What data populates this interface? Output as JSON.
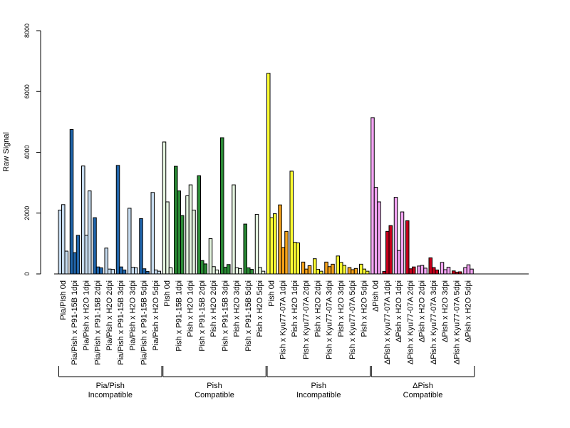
{
  "chart_data": {
    "type": "bar",
    "ylabel": "Raw Signal",
    "ylim": [
      0,
      8000
    ],
    "yticks": [
      0,
      2000,
      4000,
      6000,
      8000
    ],
    "grid": false,
    "categories": [
      "Pia/Pish 0d",
      "Pia/Pish x P91-15B 1dpi",
      "Pia/Pish x H2O 1dpi",
      "Pia/Pish x P91-15B 2dpi",
      "Pia/Pish x H2O 2dpi",
      "Pia/Pish x P91-15B 3dpi",
      "Pia/Pish x H2O 3dpi",
      "Pia/Pish x P91-15B 5dpi",
      "Pia/Pish x H2O 5dpi",
      "Pish 0d",
      "Pish x P91-15B 1dpi",
      "Pish x H2O 1dpi",
      "Pish x P91-15B 2dpi",
      "Pish x H2O 2dpi",
      "Pish x P91-15B 3dpi",
      "Pish x H2O 3dpi",
      "Pish x P91-15B 5dpi",
      "Pish x H2O 5dpi",
      "Pish 0d",
      "Pish x Kyu77-07A 1dpi",
      "Pish x H2O 1dpi",
      "Pish x Kyu77-07A 2dpi",
      "Pish x H2O 2dpi",
      "Pish x Kyu77-07A 3dpi",
      "Pish x H2O 3dpi",
      "Pish x Kyu77-07A 5dpi",
      "Pish x H2O 5dpi",
      "ΔPish 0d",
      "ΔPish x Kyu77-07A 1dpi",
      "ΔPish x H2O 1dpi",
      "ΔPish x Kyu77-07A 2dpi",
      "ΔPish x H2O 2dpi",
      "ΔPish x Kyu77-07A 3dpi",
      "ΔPish x H2O 3dpi",
      "ΔPish x Kyu77-07A 5dpi",
      "ΔPish x H2O 5dpi"
    ],
    "values": [
      [
        2100,
        2280,
        750
      ],
      [
        4750,
        700,
        1270
      ],
      [
        3550,
        1270,
        2730
      ],
      [
        1850,
        230,
        200
      ],
      [
        850,
        160,
        150
      ],
      [
        3570,
        230,
        130
      ],
      [
        2160,
        220,
        200
      ],
      [
        1820,
        170,
        80
      ],
      [
        2680,
        130,
        90
      ],
      [
        4340,
        2370,
        200
      ],
      [
        3540,
        2730,
        1920
      ],
      [
        2570,
        2930,
        2100
      ],
      [
        3230,
        440,
        330
      ],
      [
        1160,
        240,
        130
      ],
      [
        4480,
        220,
        310
      ],
      [
        2930,
        200,
        180
      ],
      [
        1640,
        200,
        150
      ],
      [
        1960,
        210,
        90
      ],
      [
        6600,
        1850,
        1980
      ],
      [
        2270,
        870,
        1400
      ],
      [
        3380,
        1040,
        1020
      ],
      [
        390,
        160,
        270
      ],
      [
        500,
        150,
        90
      ],
      [
        390,
        240,
        320
      ],
      [
        590,
        380,
        280
      ],
      [
        210,
        140,
        180
      ],
      [
        320,
        160,
        90
      ],
      [
        5140,
        2850,
        2370
      ],
      [
        80,
        1400,
        1590
      ],
      [
        2520,
        770,
        2040
      ],
      [
        1750,
        170,
        230
      ],
      [
        260,
        280,
        190
      ],
      [
        530,
        210,
        130
      ],
      [
        380,
        140,
        220
      ],
      [
        100,
        60,
        70
      ],
      [
        210,
        300,
        160
      ]
    ],
    "category_colors": [
      "#c6dbef",
      "#2166ac",
      "#c6dbef",
      "#2166ac",
      "#c6dbef",
      "#2166ac",
      "#c6dbef",
      "#2166ac",
      "#c6dbef",
      "#e5f5e0",
      "#2a8a35",
      "#e5f5e0",
      "#2a8a35",
      "#e5f5e0",
      "#2a8a35",
      "#e5f5e0",
      "#2a8a35",
      "#e5f5e0",
      "#ffff33",
      "#f6a21a",
      "#ffff33",
      "#f6a21a",
      "#ffff33",
      "#f6a21a",
      "#ffff33",
      "#f6a21a",
      "#ffff33",
      "#f4a4f4",
      "#c4001b",
      "#f4a4f4",
      "#c4001b",
      "#f4a4f4",
      "#c4001b",
      "#f4a4f4",
      "#c4001b",
      "#f4a4f4"
    ],
    "groups": [
      {
        "line1": "Pia/Pish",
        "line2": "Incompatible"
      },
      {
        "line1": "Pish",
        "line2": "Compatible"
      },
      {
        "line1": "Pish",
        "line2": "Incompatible"
      },
      {
        "line1": "ΔPish",
        "line2": "Compatible"
      }
    ]
  }
}
